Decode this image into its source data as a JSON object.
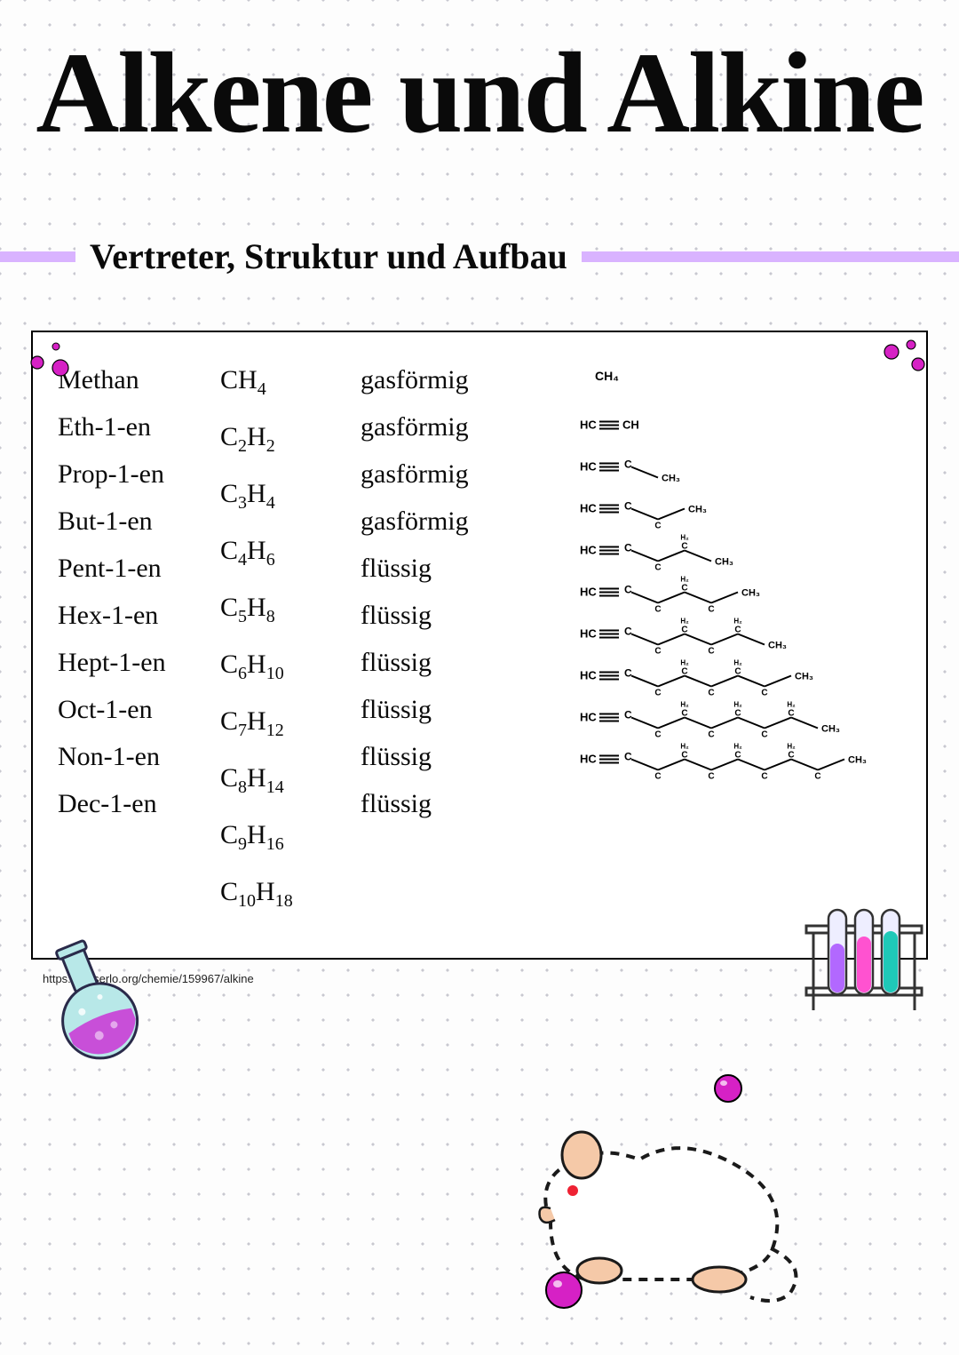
{
  "title": "Alkene und Alkine",
  "section_title": "Vertreter, Struktur und Aufbau",
  "citation": "https://de.serlo.org/chemie/159967/alkine",
  "colors": {
    "accent_bar": "#d9b3ff",
    "magenta": "#d621c5",
    "pink_deep": "#c020b0",
    "flask_liquid": "#c84fd8",
    "flask_glass": "#b8e8e8",
    "tube_purple": "#b268ff",
    "tube_pink": "#ff52d0",
    "tube_teal": "#1fc9b8",
    "mouse_body": "#ffffff",
    "mouse_ear": "#f5c9a8",
    "text": "#0a0a0a",
    "border": "#000000",
    "bg": "#fdfdfd"
  },
  "table": {
    "rows": [
      {
        "name": "Methan",
        "c": 1,
        "h": 4,
        "formula_c_label": "CH",
        "state": "gasförmig"
      },
      {
        "name": "Eth-1-en",
        "c": 2,
        "h": 2,
        "formula_c_label": "C",
        "state": "gasförmig"
      },
      {
        "name": "Prop-1-en",
        "c": 3,
        "h": 4,
        "formula_c_label": "C",
        "state": "gasförmig"
      },
      {
        "name": "But-1-en",
        "c": 4,
        "h": 6,
        "formula_c_label": "C",
        "state": "gasförmig"
      },
      {
        "name": "Pent-1-en",
        "c": 5,
        "h": 8,
        "formula_c_label": "C",
        "state": "flüssig"
      },
      {
        "name": "Hex-1-en",
        "c": 6,
        "h": 10,
        "formula_c_label": "C",
        "state": "flüssig"
      },
      {
        "name": "Hept-1-en",
        "c": 7,
        "h": 12,
        "formula_c_label": "C",
        "state": "flüssig"
      },
      {
        "name": "Oct-1-en",
        "c": 8,
        "h": 14,
        "formula_c_label": "C",
        "state": "flüssig"
      },
      {
        "name": "Non-1-en",
        "c": 9,
        "h": 16,
        "formula_c_label": "C",
        "state": "flüssig"
      },
      {
        "name": "Dec-1-en",
        "c": 10,
        "h": 18,
        "formula_c_label": "C",
        "state": "flüssig"
      }
    ]
  },
  "structures": {
    "triple_bond_glyph": "≡",
    "labels": {
      "hc": "HC",
      "c": "C",
      "ch": "CH",
      "ch3": "CH₃",
      "ch4": "CH₄",
      "h2": "H₂"
    }
  }
}
